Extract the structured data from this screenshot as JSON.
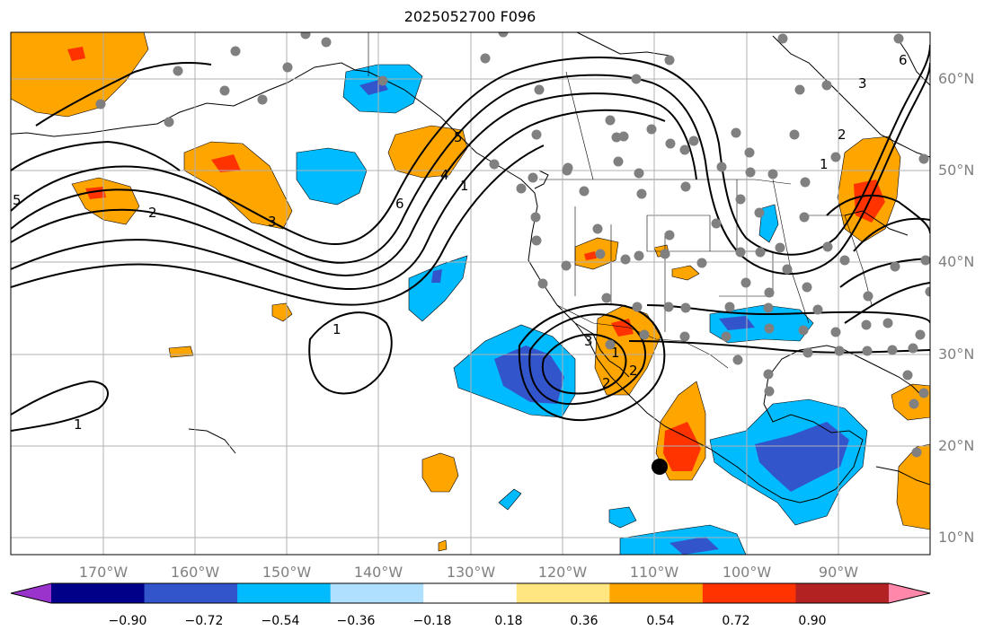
{
  "title": "2025052700 F096",
  "lon_labels": [
    "170°W",
    "160°W",
    "150°W",
    "140°W",
    "130°W",
    "120°W",
    "110°W",
    "100°W",
    "90°W"
  ],
  "lat_labels": [
    "10°N",
    "20°N",
    "30°N",
    "40°N",
    "50°N",
    "60°N"
  ],
  "colorbar": {
    "ticks": [
      "−0.90",
      "−0.72",
      "−0.54",
      "−0.36",
      "−0.18",
      "0.18",
      "0.36",
      "0.54",
      "0.72",
      "0.90"
    ],
    "colors": [
      "#9933cc",
      "#000088",
      "#3355cc",
      "#00bbff",
      "#b0e0ff",
      "#ffffff",
      "#ffe680",
      "#ffa500",
      "#ff3300",
      "#b22222",
      "#ff88aa"
    ]
  },
  "contour_labels": [
    "5",
    "2",
    "3",
    "6",
    "4",
    "5",
    "1",
    "1",
    "2",
    "3",
    "1",
    "1",
    "2",
    "3",
    "1",
    "2",
    "6"
  ],
  "palette": {
    "orange": "#ffa500",
    "red": "#ff3300",
    "cyan": "#00bbff",
    "blue": "#3355cc",
    "grid": "#b0b0b0",
    "dot": "#808080"
  }
}
